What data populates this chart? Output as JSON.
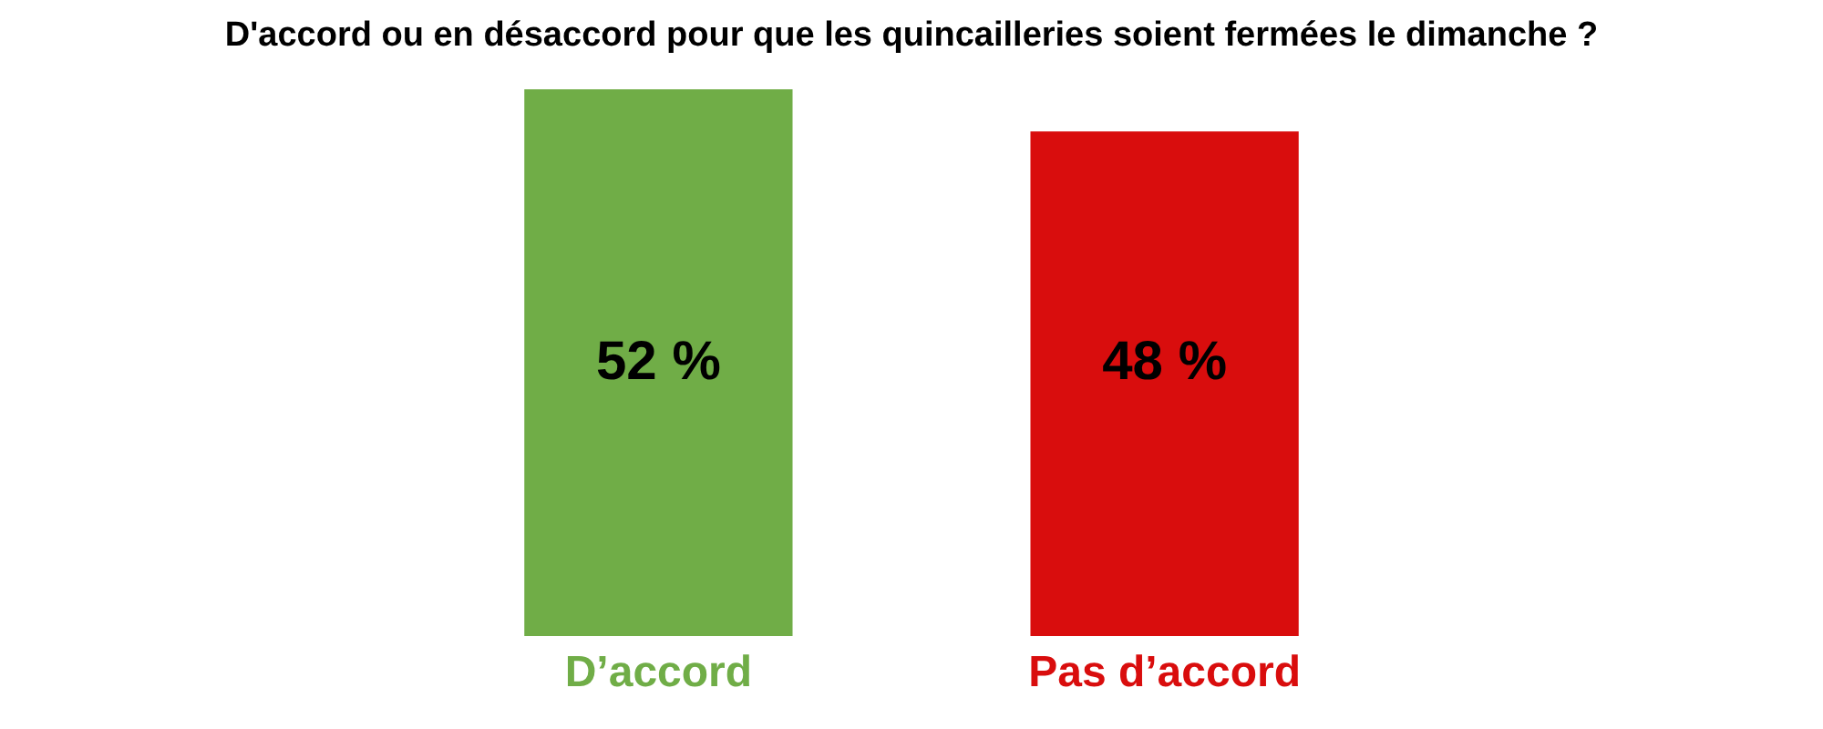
{
  "chart_data": {
    "type": "bar",
    "title": "D'accord ou en désaccord pour que les quincailleries soient fermées le dimanche ?",
    "categories": [
      "D’accord",
      "Pas d’accord"
    ],
    "values": [
      52,
      48
    ],
    "colors": [
      "#70ad47",
      "#d90d0d"
    ],
    "value_labels": [
      "52 %",
      "48 %"
    ]
  }
}
